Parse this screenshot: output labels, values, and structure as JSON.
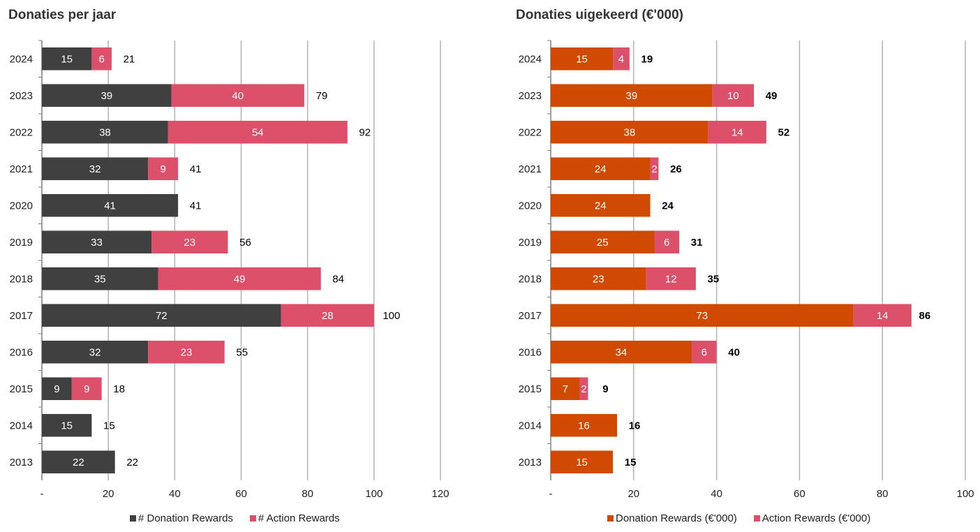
{
  "colors": {
    "donation_left": "#404040",
    "action": "#dc506a",
    "donation_right": "#d04a02",
    "grid": "#b3b3b3",
    "axis": "#7f7f7f"
  },
  "chart_data": [
    {
      "type": "bar",
      "orientation": "horizontal",
      "stacked": true,
      "title": "Donaties per jaar",
      "categories": [
        "2024",
        "2023",
        "2022",
        "2021",
        "2020",
        "2019",
        "2018",
        "2017",
        "2016",
        "2015",
        "2014",
        "2013"
      ],
      "series": [
        {
          "name": "# Donation Rewards",
          "color": "#404040",
          "values": [
            15,
            39,
            38,
            32,
            41,
            33,
            35,
            72,
            32,
            9,
            15,
            22
          ]
        },
        {
          "name": "# Action Rewards",
          "color": "#dc506a",
          "values": [
            6,
            40,
            54,
            9,
            0,
            23,
            49,
            28,
            23,
            9,
            0,
            0
          ]
        }
      ],
      "totals": [
        21,
        79,
        92,
        41,
        41,
        56,
        84,
        100,
        55,
        18,
        15,
        22
      ],
      "totals_bold": false,
      "xlim": [
        0,
        120
      ],
      "xticks": [
        0,
        20,
        40,
        60,
        80,
        100,
        120
      ],
      "xtick_labels": [
        "-",
        "20",
        "40",
        "60",
        "80",
        "100",
        "120"
      ],
      "grid": true,
      "legend_position": "bottom"
    },
    {
      "type": "bar",
      "orientation": "horizontal",
      "stacked": true,
      "title": "Donaties uigekeerd (€'000)",
      "categories": [
        "2024",
        "2023",
        "2022",
        "2021",
        "2020",
        "2019",
        "2018",
        "2017",
        "2016",
        "2015",
        "2014",
        "2013"
      ],
      "series": [
        {
          "name": "Donation Rewards (€'000)",
          "color": "#d04a02",
          "values": [
            15,
            39,
            38,
            24,
            24,
            25,
            23,
            73,
            34,
            7,
            16,
            15
          ]
        },
        {
          "name": "Action Rewards (€'000)",
          "color": "#dc506a",
          "values": [
            4,
            10,
            14,
            2,
            0,
            6,
            12,
            14,
            6,
            2,
            0,
            0
          ]
        }
      ],
      "totals": [
        19,
        49,
        52,
        26,
        24,
        31,
        35,
        86,
        40,
        9,
        16,
        15
      ],
      "totals_bold": true,
      "xlim": [
        0,
        100
      ],
      "xticks": [
        0,
        20,
        40,
        60,
        80,
        100
      ],
      "xtick_labels": [
        "-",
        "20",
        "40",
        "60",
        "80",
        "100"
      ],
      "grid": true,
      "legend_position": "bottom"
    }
  ]
}
